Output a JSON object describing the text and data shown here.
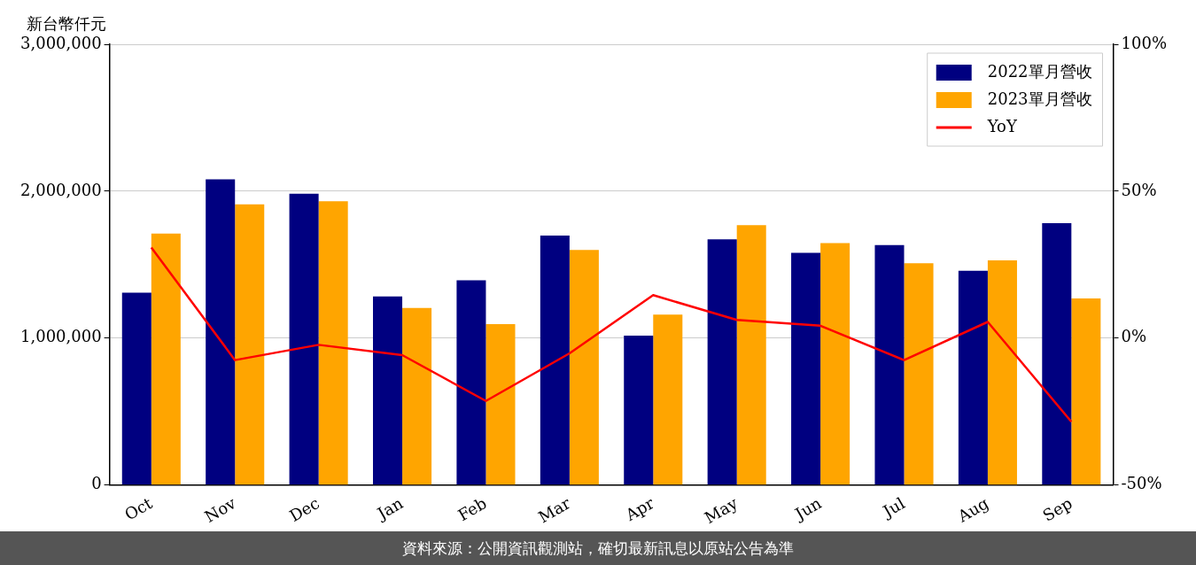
{
  "chart_data": {
    "type": "bar",
    "ylabel": "新台幣仟元",
    "categories": [
      "Oct",
      "Nov",
      "Dec",
      "Jan",
      "Feb",
      "Mar",
      "Apr",
      "May",
      "Jun",
      "Jul",
      "Aug",
      "Sep"
    ],
    "series": [
      {
        "name": "2022單月營收",
        "color": "#000080",
        "values": [
          1309000,
          2080000,
          1983000,
          1283000,
          1393000,
          1698000,
          1017000,
          1672000,
          1581000,
          1633000,
          1458000,
          1782000
        ]
      },
      {
        "name": "2023單月營收",
        "color": "#ffa500",
        "values": [
          1711000,
          1911000,
          1931000,
          1205000,
          1095000,
          1600000,
          1160000,
          1769000,
          1646000,
          1510000,
          1529000,
          1270000
        ]
      },
      {
        "name": "YoY",
        "type": "line",
        "axis": "y2",
        "color": "#ff0000",
        "values": [
          30.8,
          -7.5,
          -2.3,
          -5.8,
          -21.4,
          -5.2,
          14.6,
          6.2,
          4.2,
          -7.5,
          5.5,
          -28.5
        ]
      }
    ],
    "ylim": [
      0,
      3000000
    ],
    "yticks": [
      0,
      {
        "value": 1000000,
        "label": "1,000,000"
      },
      {
        "value": 2000000,
        "label": "2,000,000"
      },
      {
        "value": 3000000,
        "label": "3,000,000"
      }
    ],
    "y2lim": [
      -50,
      100
    ],
    "y2ticks": [
      {
        "value": -50,
        "label": "-50%"
      },
      {
        "value": 0,
        "label": "0%"
      },
      {
        "value": 50,
        "label": "50%"
      },
      {
        "value": 100,
        "label": "100%"
      }
    ],
    "grid": "y",
    "legend": "top right",
    "marker": "none",
    "line_style": "solid",
    "annotations": [
      "資料來源：公開資訊觀測站，確切最新訊息以原站公告為準"
    ]
  }
}
